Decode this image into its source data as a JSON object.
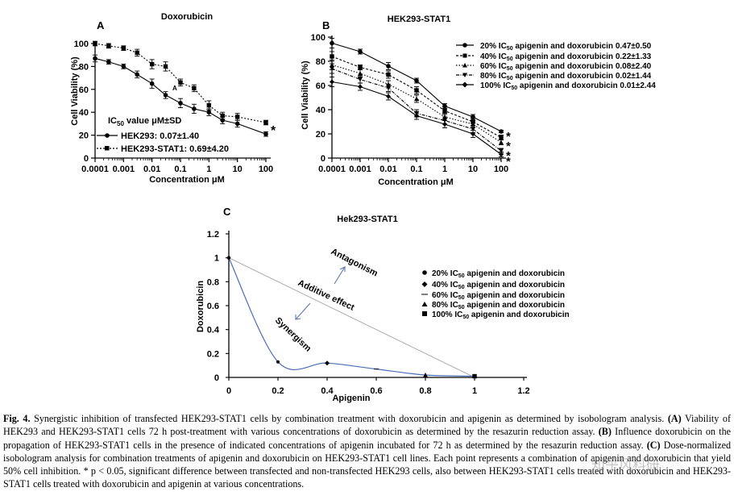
{
  "figure_a": {
    "panel_letter": "A",
    "title": "Doxorubicin",
    "ylabel": "Cell  Viability (%)",
    "xlabel": "Concentration μM",
    "ic50_header_main": "IC",
    "ic50_header_sub": "50",
    "ic50_header_rest": " value μM±SD",
    "inner_letter": "A",
    "asterisk": "*",
    "legend": [
      {
        "label": "HEK293: 0.07±1.40"
      },
      {
        "label": "HEK293-STAT1: 0.69±4.20"
      }
    ]
  },
  "figure_b": {
    "panel_letter": "B",
    "title": "HEK293-STAT1",
    "ylabel": "Cell  Viability (%)",
    "xlabel": "Concentration μM",
    "stars": [
      "*",
      "*",
      "*",
      "*"
    ],
    "legend": [
      {
        "pre": "20% IC",
        "sub": "50",
        "post": " apigenin and doxorubicin 0.47±0.50"
      },
      {
        "pre": "40% IC",
        "sub": "50",
        "post": " apigenin and doxorubicin 0.22±1.33"
      },
      {
        "pre": "60% IC",
        "sub": "50",
        "post": " apigenin and doxorubicin 0.08±2.40"
      },
      {
        "pre": "80% IC",
        "sub": "50",
        "post": " apigenin and doxorubicin 0.02±1.44"
      },
      {
        "pre": "100% IC",
        "sub": "50",
        "post": " apigenin and doxorubicin 0.01±2.44"
      }
    ]
  },
  "figure_c": {
    "panel_letter": "C",
    "title": "Hek293-STAT1",
    "ylabel": "Doxorubicin",
    "xlabel": "Apigenin",
    "annotations": {
      "antagonism": "Antagonism",
      "additive": "Additive effect",
      "synergism": "Synergism"
    },
    "legend": [
      {
        "pre": "20% IC",
        "sub": "50",
        "post": " apigenin and doxorubicin"
      },
      {
        "pre": "40% IC",
        "sub": "50",
        "post": " apigenin and doxorubicin"
      },
      {
        "pre": "60% IC",
        "sub": "50",
        "post": " apigenin and doxorubicin"
      },
      {
        "pre": "80% IC",
        "sub": "50",
        "post": " apigenin and doxorubicin"
      },
      {
        "pre": "100% IC",
        "sub": "50",
        "post": " apigenin and doxorubicin"
      }
    ]
  },
  "caption": {
    "fig_label": "Fig. 4.",
    "intro": " Synergistic inhibition of transfected HEK293-STAT1 cells by combination treatment with doxorubicin and apigenin as determined by isobologram analysis.",
    "a_label": "(A)",
    "a_text": " Viability of HEK293 and HEK293-STAT1 cells 72 h post-treatment with various concentrations of doxorubicin as determined by the resazurin reduction assay.",
    "b_label": "(B)",
    "b_text": " Influence doxorubicin on the propagation of HEK293-STAT1 cells in the presence of indicated concentrations of apigenin incubated for 72 h as determined by the resazurin reduction assay.",
    "c_label": "(C)",
    "c_text": " Dose-normalized isobologram analysis for combination treatments of apigenin and doxorubicin on HEK293-STAT1 cell lines. Each point represents a combination of apigenin and doxorubicin that yield 50% cell inhibition. * p < 0.05, significant difference between transfected and non-transfected HEK293 cells, also between HEK293-STAT1 cells treated with doxorubicin and HEK293-STAT1 cells treated with doxorubicin and apigenin at various concentrations."
  },
  "watermark": "知乎风科研",
  "chart_data": [
    {
      "type": "line",
      "panel": "A",
      "title": "Doxorubicin",
      "xlabel": "Concentration μM",
      "ylabel": "Cell  Viability (%)",
      "xscale": "log",
      "x_ticks": [
        "0.0001",
        "0.001",
        "0.01",
        "0.1",
        "1",
        "10",
        "100"
      ],
      "y_ticks": [
        "0",
        "20",
        "40",
        "60",
        "80",
        "100"
      ],
      "ylim": [
        0,
        100
      ],
      "x": [
        0.0001,
        0.0003,
        0.001,
        0.003,
        0.01,
        0.03,
        0.1,
        0.3,
        1,
        3,
        10,
        100
      ],
      "series": [
        {
          "name": "HEK293",
          "style": "solid-circle",
          "values": [
            87,
            84,
            80,
            73,
            65,
            55,
            48,
            43,
            40,
            33,
            30,
            21
          ],
          "errors": [
            3,
            2,
            2,
            3,
            4,
            3,
            4,
            4,
            3,
            3,
            3,
            2
          ]
        },
        {
          "name": "HEK293-STAT1",
          "style": "dotted-square",
          "values": [
            100,
            98,
            96,
            92,
            82,
            80,
            66,
            61,
            46,
            37,
            36,
            31
          ],
          "errors": [
            2,
            2,
            2,
            3,
            4,
            4,
            3,
            3,
            4,
            3,
            3,
            2
          ]
        }
      ]
    },
    {
      "type": "line",
      "panel": "B",
      "title": "HEK293-STAT1",
      "xlabel": "Concentration μM",
      "ylabel": "Cell  Viability (%)",
      "xscale": "log",
      "x_ticks": [
        "0.0001",
        "0.001",
        "0.01",
        "0.1",
        "1",
        "10",
        "100"
      ],
      "y_ticks": [
        "0",
        "20",
        "40",
        "60",
        "80",
        "100"
      ],
      "ylim": [
        0,
        100
      ],
      "x": [
        0.0001,
        0.001,
        0.01,
        0.1,
        1,
        10,
        100
      ],
      "series": [
        {
          "name": "20% IC50 apigenin and doxorubicin",
          "style": "circle",
          "values": [
            95,
            88,
            76,
            64,
            43,
            34,
            22
          ],
          "errors": [
            4,
            2,
            3,
            2,
            2,
            2,
            1
          ]
        },
        {
          "name": "40% IC50 apigenin and doxorubicin",
          "style": "square",
          "values": [
            84,
            75,
            69,
            56,
            39,
            30,
            17
          ],
          "errors": [
            4,
            2,
            3,
            3,
            3,
            3,
            2
          ]
        },
        {
          "name": "60% IC50 apigenin and doxorubicin",
          "style": "triangle-up",
          "values": [
            77,
            70,
            61,
            49,
            34,
            28,
            13
          ],
          "errors": [
            4,
            3,
            3,
            3,
            3,
            3,
            2
          ]
        },
        {
          "name": "80% IC50 apigenin and doxorubicin",
          "style": "triangle-down",
          "values": [
            74,
            65,
            58,
            37,
            31,
            24,
            6
          ],
          "errors": [
            4,
            3,
            3,
            3,
            3,
            3,
            2
          ]
        },
        {
          "name": "100% IC50 apigenin and doxorubicin",
          "style": "diamond",
          "values": [
            63,
            59,
            51,
            35,
            28,
            20,
            3
          ],
          "errors": [
            4,
            3,
            3,
            3,
            3,
            3,
            2
          ]
        }
      ]
    },
    {
      "type": "scatter",
      "panel": "C",
      "title": "Hek293-STAT1",
      "xlabel": "Apigenin",
      "ylabel": "Doxorubicin",
      "xlim": [
        0,
        1.2
      ],
      "ylim": [
        0,
        1.2
      ],
      "x_ticks": [
        "0",
        "0.2",
        "0.4",
        "0.6",
        "0.8",
        "1",
        "1.2"
      ],
      "y_ticks": [
        "0",
        "0.2",
        "0.4",
        "0.6",
        "0.8",
        "1",
        "1.2"
      ],
      "curve": {
        "x": [
          0,
          0.2,
          0.4,
          0.6,
          0.8,
          1
        ],
        "y": [
          1,
          0.13,
          0.12,
          0.07,
          0.02,
          0.01
        ]
      },
      "additive_line": {
        "x": [
          0,
          1
        ],
        "y": [
          1,
          0
        ]
      },
      "points": [
        {
          "name": "20% IC50 apigenin and doxorubicin",
          "x": 0.2,
          "y": 0.13
        },
        {
          "name": "40% IC50 apigenin and doxorubicin",
          "x": 0.4,
          "y": 0.12
        },
        {
          "name": "60% IC50 apigenin and doxorubicin",
          "x": 0.6,
          "y": 0.07
        },
        {
          "name": "80% IC50 apigenin and doxorubicin",
          "x": 0.8,
          "y": 0.02
        },
        {
          "name": "100% IC50 apigenin and doxorubicin",
          "x": 1.0,
          "y": 0.01
        }
      ]
    }
  ]
}
